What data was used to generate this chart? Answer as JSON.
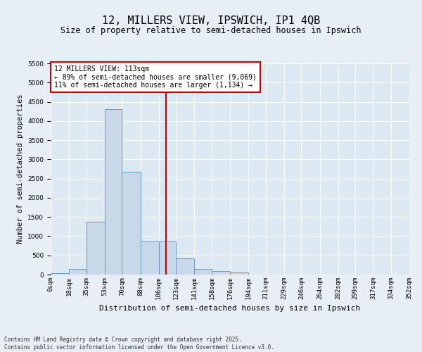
{
  "title_line1": "12, MILLERS VIEW, IPSWICH, IP1 4QB",
  "title_line2": "Size of property relative to semi-detached houses in Ipswich",
  "xlabel": "Distribution of semi-detached houses by size in Ipswich",
  "ylabel": "Number of semi-detached properties",
  "property_label": "12 MILLERS VIEW: 113sqm",
  "pct_smaller": 89,
  "pct_larger": 11,
  "count_smaller": 9069,
  "count_larger": 1134,
  "bin_labels": [
    "0sqm",
    "18sqm",
    "35sqm",
    "53sqm",
    "70sqm",
    "88sqm",
    "106sqm",
    "123sqm",
    "141sqm",
    "158sqm",
    "176sqm",
    "194sqm",
    "211sqm",
    "229sqm",
    "246sqm",
    "264sqm",
    "282sqm",
    "299sqm",
    "317sqm",
    "334sqm",
    "352sqm"
  ],
  "bin_edges": [
    0,
    18,
    35,
    53,
    70,
    88,
    106,
    123,
    141,
    158,
    176,
    194,
    211,
    229,
    246,
    264,
    282,
    299,
    317,
    334,
    352
  ],
  "bar_values": [
    30,
    150,
    1370,
    4300,
    2680,
    870,
    870,
    430,
    150,
    100,
    60,
    0,
    0,
    0,
    0,
    0,
    0,
    0,
    0,
    0
  ],
  "bar_color": "#c8d8e8",
  "bar_edge_color": "#5b8db8",
  "vline_color": "#cc0000",
  "vline_x": 113,
  "ylim": [
    0,
    5500
  ],
  "yticks": [
    0,
    500,
    1000,
    1500,
    2000,
    2500,
    3000,
    3500,
    4000,
    4500,
    5000,
    5500
  ],
  "bg_color": "#e8eef5",
  "plot_bg_color": "#dce8f2",
  "footer": "Contains HM Land Registry data © Crown copyright and database right 2025.\nContains public sector information licensed under the Open Government Licence v3.0.",
  "title1_fontsize": 11,
  "title2_fontsize": 8.5,
  "ylabel_fontsize": 7.5,
  "xlabel_fontsize": 8,
  "tick_fontsize": 6.5,
  "annot_fontsize": 7,
  "footer_fontsize": 5.5
}
